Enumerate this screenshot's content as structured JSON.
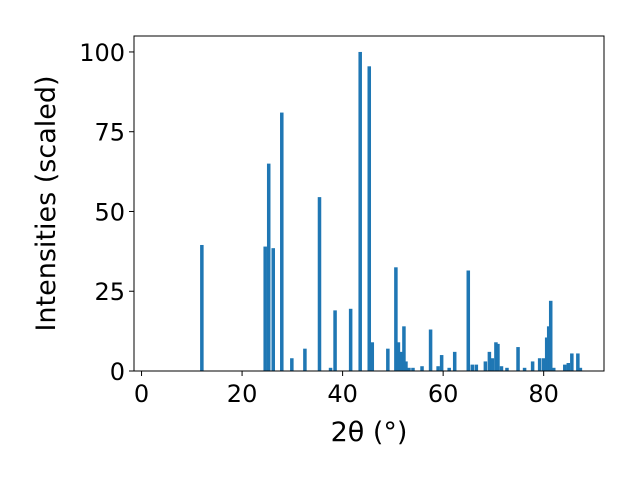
{
  "chart_data": {
    "type": "bar",
    "xlabel": "2θ (°)",
    "ylabel": "Intensities (scaled)",
    "xlim": [
      -1.5,
      92
    ],
    "ylim": [
      0,
      105
    ],
    "xticks": [
      0,
      20,
      40,
      60,
      80
    ],
    "yticks": [
      0,
      25,
      50,
      75,
      100
    ],
    "grid": false,
    "bar_color": "#1f77b4",
    "bar_width": 0.7,
    "series": [
      {
        "x": [
          12.0,
          24.6,
          25.3,
          26.2,
          27.9,
          29.9,
          32.5,
          35.4,
          37.6,
          38.5,
          41.6,
          43.5,
          45.3,
          45.9,
          49.0,
          50.6,
          51.1,
          51.7,
          52.2,
          52.6,
          53.2,
          54.0,
          55.8,
          57.5,
          59.0,
          59.7,
          61.2,
          62.3,
          65.0,
          65.8,
          66.6,
          68.4,
          69.2,
          69.8,
          70.5,
          70.9,
          71.6,
          72.7,
          74.9,
          76.2,
          77.8,
          79.2,
          80.0,
          80.6,
          81.0,
          81.4,
          82.0,
          84.2,
          84.9,
          85.6,
          86.8,
          87.3
        ],
        "y": [
          39.5,
          39,
          65,
          38.5,
          81,
          4,
          7,
          54.5,
          1,
          19,
          19.5,
          100,
          95.5,
          9,
          7,
          32.5,
          9,
          6,
          14,
          3,
          1,
          1,
          1.5,
          13,
          1.5,
          5,
          1,
          6,
          31.5,
          2,
          2,
          3,
          6,
          4,
          9,
          8.5,
          1.5,
          1,
          7.5,
          1,
          3,
          4,
          4,
          10.5,
          14,
          22,
          1,
          2,
          2.5,
          5.5,
          5.5,
          1
        ]
      }
    ]
  }
}
